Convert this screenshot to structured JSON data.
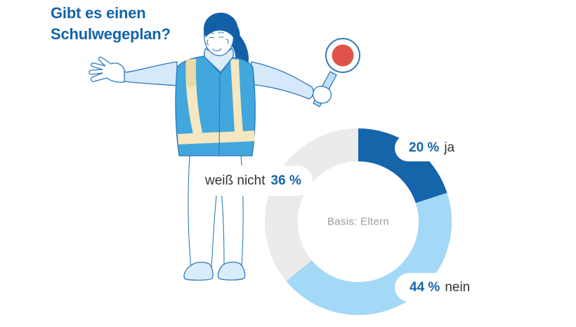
{
  "title": {
    "line1": "Gibt es einen",
    "line2": "Schulwegeplan?"
  },
  "chart_data": {
    "type": "pie",
    "subtype": "donut",
    "title": "Gibt es einen Schulwegeplan?",
    "center_label": "Basis: Eltern",
    "unit": "%",
    "start_angle_deg": 0,
    "direction": "clockwise",
    "legend_position": "callout-bubbles-on-ring",
    "slices": [
      {
        "label": "ja",
        "value": 20,
        "display": "20 %",
        "color": "#1565ab"
      },
      {
        "label": "nein",
        "value": 44,
        "display": "44 %",
        "color": "#a3d8f6"
      },
      {
        "label": "weiß nicht",
        "value": 36,
        "display": "36 %",
        "color": "#ebebeb"
      }
    ]
  },
  "colors": {
    "title_blue": "#1464ab",
    "accent_blue": "#1565ab",
    "label_dark": "#333333",
    "muted_gray": "#9b9b9b",
    "slice_ja": "#1565ab",
    "slice_nein": "#a3d8f6",
    "slice_weiss_nicht": "#ebebeb",
    "paddle_red": "#e0534a",
    "vest_blue": "#41a7dc"
  },
  "illustration": {
    "name": "crossing-guard-holding-stop-paddle"
  }
}
